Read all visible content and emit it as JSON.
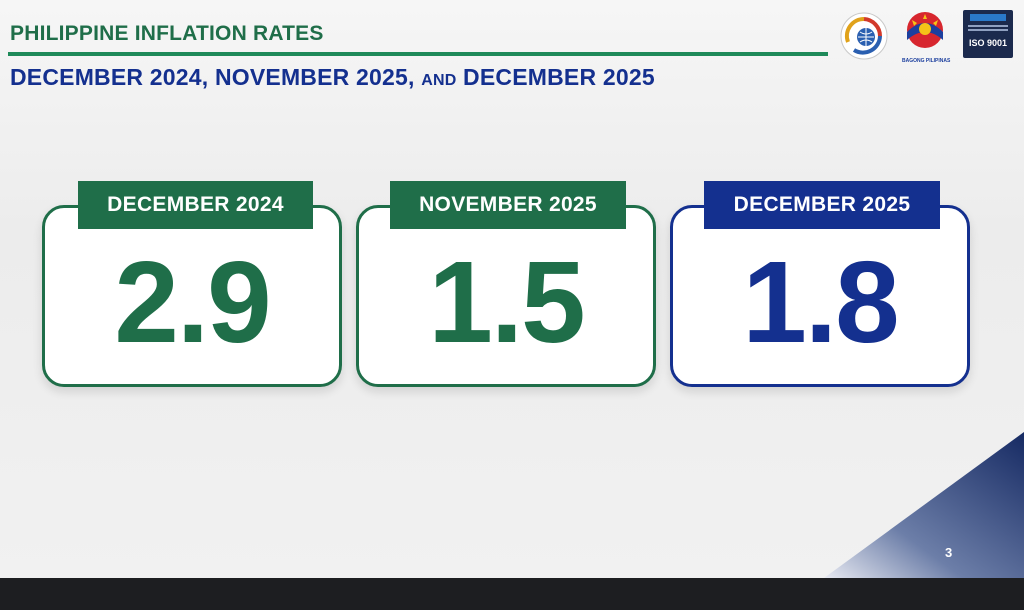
{
  "header": {
    "title": "PHILIPPINE INFLATION RATES",
    "subtitle_part1": "DECEMBER 2024, NOVEMBER 2025, ",
    "subtitle_and": "AND",
    "subtitle_part2": " DECEMBER 2025"
  },
  "logos": {
    "bagong_label": "BAGONG PILIPINAS",
    "iso_label": "ISO 9001"
  },
  "cards": [
    {
      "label": "DECEMBER 2024",
      "value": "2.9",
      "color": "#1f6e49"
    },
    {
      "label": "NOVEMBER 2025",
      "value": "1.5",
      "color": "#1f6e49"
    },
    {
      "label": "DECEMBER 2025",
      "value": "1.8",
      "color": "#14308f"
    }
  ],
  "footer": {
    "page_number": "3"
  },
  "colors": {
    "green": "#1f6e49",
    "blue": "#14308f",
    "rule_green": "#1f8a5a"
  }
}
